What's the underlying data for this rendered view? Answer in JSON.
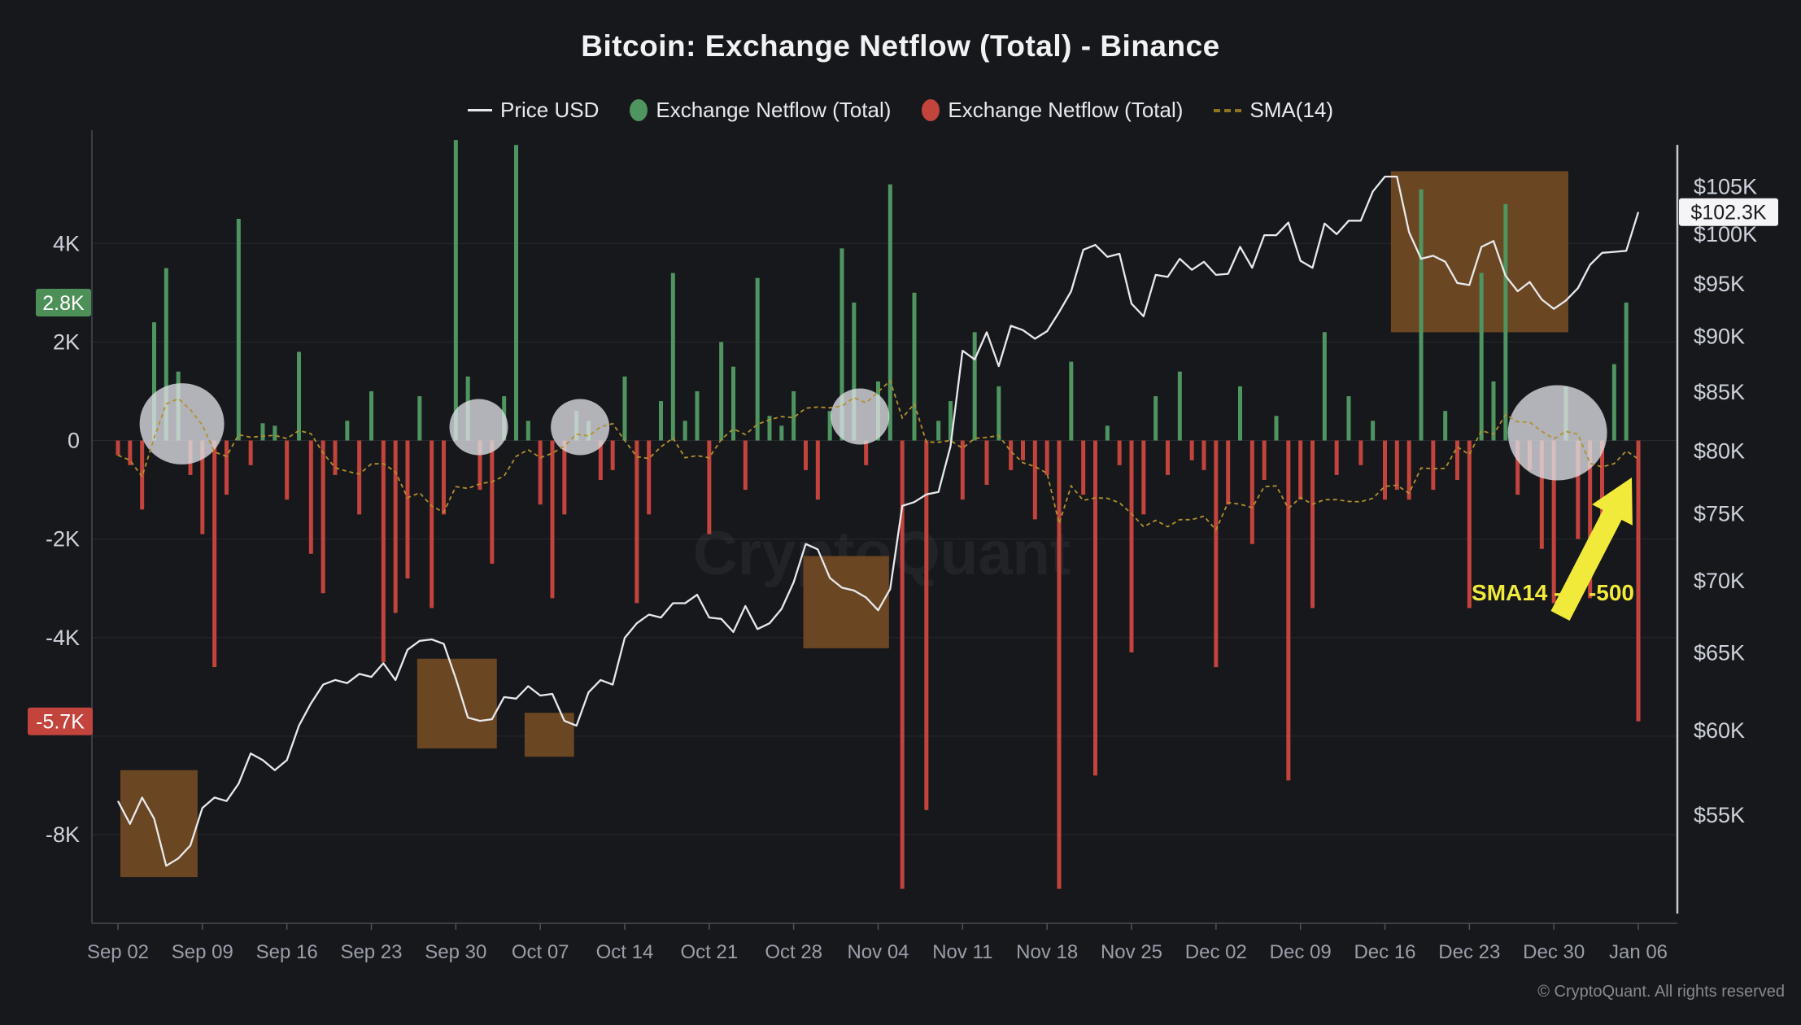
{
  "title": "Bitcoin: Exchange Netflow (Total) - Binance",
  "copyright": "© CryptoQuant. All rights reserved",
  "watermark": "CryptoQuant",
  "legend": [
    {
      "label": "Price USD",
      "marker": "line",
      "color": "#e8e9ec"
    },
    {
      "label": "Exchange Netflow (Total)",
      "marker": "dot",
      "color": "#4f9560"
    },
    {
      "label": "Exchange Netflow (Total)",
      "marker": "dot",
      "color": "#c2443c"
    },
    {
      "label": "SMA(14)",
      "marker": "dash",
      "color": "#b3902c"
    }
  ],
  "annotation": {
    "text": "SMA14 --> -500",
    "color": "#f2ea3a"
  },
  "badges": {
    "netflow_green": {
      "label": "2.8K",
      "value": 2800,
      "bg": "#4c9058",
      "fg": "#ffffff"
    },
    "netflow_red": {
      "label": "-5.7K",
      "value": -5700,
      "bg": "#c2443c",
      "fg": "#ffffff"
    },
    "price": {
      "label": "$102.3K",
      "value": 102300,
      "bg": "#f5f5f7",
      "fg": "#1a1b1f"
    }
  },
  "chart_data": {
    "type": "bar+line",
    "title": "Bitcoin: Exchange Netflow (Total) - Binance",
    "start_date": "Sep 02",
    "x_tick_labels": [
      "Sep 02",
      "Sep 09",
      "Sep 16",
      "Sep 23",
      "Sep 30",
      "Oct 07",
      "Oct 14",
      "Oct 21",
      "Oct 28",
      "Nov 04",
      "Nov 11",
      "Nov 18",
      "Nov 25",
      "Dec 02",
      "Dec 09",
      "Dec 16",
      "Dec 23",
      "Dec 30",
      "Jan 06"
    ],
    "netflow_axis": {
      "ylim": [
        -9800,
        6300
      ],
      "ticks": [
        {
          "v": 4000,
          "label": "4K"
        },
        {
          "v": 2000,
          "label": "2K"
        },
        {
          "v": 0,
          "label": "0"
        },
        {
          "v": -2000,
          "label": "-2K"
        },
        {
          "v": -4000,
          "label": "-4K"
        },
        {
          "v": -8000,
          "label": "-8K"
        }
      ]
    },
    "price_axis": {
      "scale": "log",
      "ylim": [
        49200,
        111300
      ],
      "ticks": [
        {
          "v": 105000,
          "label": "$105K"
        },
        {
          "v": 100000,
          "label": "$100K"
        },
        {
          "v": 95000,
          "label": "$95K"
        },
        {
          "v": 90000,
          "label": "$90K"
        },
        {
          "v": 85000,
          "label": "$85K"
        },
        {
          "v": 80000,
          "label": "$80K"
        },
        {
          "v": 75000,
          "label": "$75K"
        },
        {
          "v": 70000,
          "label": "$70K"
        },
        {
          "v": 65000,
          "label": "$65K"
        },
        {
          "v": 60000,
          "label": "$60K"
        },
        {
          "v": 55000,
          "label": "$55K"
        }
      ]
    },
    "sma_period": 14,
    "series": [
      {
        "name": "Exchange Netflow (Total)",
        "type": "bar",
        "color_positive": "#4f9560",
        "color_negative": "#c2443c",
        "values": [
          -300,
          -500,
          -1400,
          2400,
          3500,
          1400,
          -700,
          -1900,
          -4600,
          -1100,
          4500,
          -500,
          350,
          300,
          -1200,
          1800,
          -2300,
          -3100,
          -700,
          400,
          -1500,
          1000,
          -4500,
          -3500,
          -2800,
          900,
          -3400,
          -1500,
          6100,
          1300,
          -1000,
          -2500,
          900,
          6000,
          400,
          -1300,
          -3200,
          -1500,
          600,
          400,
          -800,
          -600,
          1300,
          -3300,
          -1500,
          800,
          3400,
          400,
          1000,
          -1900,
          2000,
          1500,
          -1000,
          3300,
          500,
          300,
          1000,
          -600,
          -1200,
          600,
          3900,
          2800,
          -500,
          1200,
          5200,
          -9100,
          3000,
          -7500,
          400,
          800,
          -1200,
          2200,
          -900,
          1100,
          -600,
          -400,
          -1600,
          -700,
          -9100,
          1600,
          -1100,
          -6800,
          300,
          -500,
          -4300,
          -1500,
          900,
          -700,
          1400,
          -400,
          -600,
          -4600,
          -1300,
          1100,
          -2100,
          -800,
          500,
          -6900,
          -1200,
          -3400,
          2200,
          -700,
          900,
          -500,
          400,
          -1200,
          -1000,
          -1200,
          5100,
          -1000,
          600,
          -800,
          -3400,
          3400,
          1200,
          4800,
          -1100,
          -600,
          -2200,
          -3300,
          1100,
          -2000,
          -3200,
          -2000,
          1550,
          2800,
          -5700
        ]
      },
      {
        "name": "Price USD",
        "type": "line",
        "color": "#e8e9ec",
        "values": [
          55800,
          54500,
          56000,
          54800,
          52200,
          52600,
          53300,
          55400,
          56000,
          55800,
          56800,
          58600,
          58200,
          57600,
          58200,
          60300,
          61700,
          62900,
          63200,
          63000,
          63600,
          63400,
          64300,
          63200,
          65200,
          65800,
          65900,
          65600,
          63300,
          60800,
          60600,
          60700,
          62100,
          62000,
          62800,
          62200,
          62300,
          60600,
          60300,
          62400,
          63200,
          62900,
          66000,
          67000,
          67600,
          67400,
          68400,
          68400,
          69000,
          67400,
          67300,
          66400,
          68200,
          66600,
          67000,
          68000,
          69900,
          72700,
          72300,
          70200,
          69500,
          69300,
          68800,
          67900,
          69400,
          75600,
          75900,
          76500,
          76700,
          80400,
          88700,
          87900,
          90400,
          87300,
          91000,
          90600,
          89800,
          90500,
          92300,
          94300,
          98400,
          98900,
          97700,
          98000,
          93100,
          91900,
          95900,
          95700,
          97500,
          96400,
          97200,
          95900,
          96000,
          98700,
          96600,
          99900,
          99900,
          101200,
          97300,
          96600,
          101100,
          100000,
          101400,
          101400,
          104500,
          106100,
          106100,
          100200,
          97500,
          97800,
          97200,
          95100,
          94900,
          98700,
          99300,
          95800,
          94300,
          95200,
          93500,
          92600,
          93400,
          94600,
          96900,
          98100,
          98200,
          98300,
          102300
        ]
      }
    ],
    "highlight_boxes": [
      {
        "d1": 0.2,
        "d2": 6.6,
        "price_low": 51600,
        "price_high": 57600
      },
      {
        "d1": 24.8,
        "d2": 31.4,
        "price_low": 58900,
        "price_high": 64600
      },
      {
        "d1": 33.7,
        "d2": 37.8,
        "price_low": 58400,
        "price_high": 61100
      },
      {
        "d1": 56.8,
        "d2": 63.9,
        "price_low": 65300,
        "price_high": 71800
      },
      {
        "d1": 105.5,
        "d2": 120.2,
        "price_low": 90400,
        "price_high": 106700
      }
    ],
    "highlight_circles": [
      {
        "day": 5.3,
        "cy": 521,
        "r": 52
      },
      {
        "day": 29.9,
        "cy": 525,
        "r": 36
      },
      {
        "day": 38.3,
        "cy": 525,
        "r": 36
      },
      {
        "day": 61.5,
        "cy": 512,
        "r": 36
      },
      {
        "day": 119.3,
        "cy": 532,
        "r": 61
      }
    ],
    "grid": "horizontal-only",
    "legend_position": "top-center"
  }
}
